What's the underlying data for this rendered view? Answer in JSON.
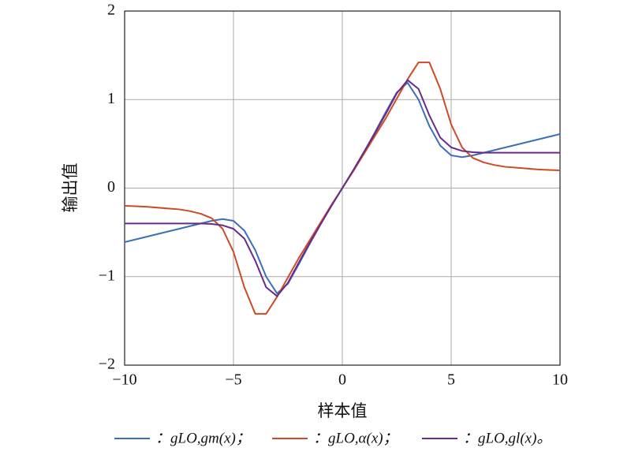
{
  "chart_data": {
    "type": "line",
    "xlabel": "样本值",
    "ylabel": "输出值",
    "xlim": [
      -10,
      10
    ],
    "ylim": [
      -2,
      2
    ],
    "xticks": [
      {
        "value": -10,
        "label": "−10"
      },
      {
        "value": -5,
        "label": "−5"
      },
      0,
      5,
      10
    ],
    "yticks": [
      {
        "value": -2,
        "label": "−2"
      },
      {
        "value": -1,
        "label": "−1"
      },
      0,
      1,
      2
    ],
    "grid": true,
    "x": [
      -10,
      -9.5,
      -9,
      -8.5,
      -8,
      -7.5,
      -7,
      -6.5,
      -6,
      -5.5,
      -5,
      -4.5,
      -4,
      -3.5,
      -3,
      -2.5,
      -2,
      -1.5,
      -1,
      -0.5,
      0,
      0.5,
      1,
      1.5,
      2,
      2.5,
      3,
      3.5,
      4,
      4.5,
      5,
      5.5,
      6,
      6.5,
      7,
      7.5,
      8,
      8.5,
      9,
      9.5,
      10
    ],
    "series": [
      {
        "name": "：gLO,gm(x)；",
        "color": "#3b6fb6",
        "values": [
          -0.61,
          -0.58,
          -0.55,
          -0.52,
          -0.49,
          -0.46,
          -0.43,
          -0.4,
          -0.37,
          -0.35,
          -0.37,
          -0.48,
          -0.7,
          -1.0,
          -1.19,
          -1.08,
          -0.86,
          -0.63,
          -0.41,
          -0.2,
          0,
          0.2,
          0.41,
          0.63,
          0.86,
          1.08,
          1.19,
          1.0,
          0.7,
          0.48,
          0.37,
          0.35,
          0.37,
          0.4,
          0.43,
          0.46,
          0.49,
          0.52,
          0.55,
          0.58,
          0.61
        ]
      },
      {
        "name": "：gLO,α(x)；",
        "color": "#cc4a25",
        "values": [
          -0.2,
          -0.205,
          -0.21,
          -0.22,
          -0.23,
          -0.24,
          -0.26,
          -0.29,
          -0.34,
          -0.46,
          -0.72,
          -1.12,
          -1.42,
          -1.42,
          -1.23,
          -1.01,
          -0.79,
          -0.59,
          -0.39,
          -0.19,
          0,
          0.19,
          0.39,
          0.59,
          0.79,
          1.01,
          1.23,
          1.42,
          1.42,
          1.12,
          0.72,
          0.46,
          0.34,
          0.29,
          0.26,
          0.24,
          0.23,
          0.22,
          0.21,
          0.205,
          0.2
        ]
      },
      {
        "name": "：gLO,gl(x)。",
        "color": "#6a2a8c",
        "values": [
          -0.4,
          -0.4,
          -0.4,
          -0.4,
          -0.4,
          -0.4,
          -0.4,
          -0.4,
          -0.405,
          -0.42,
          -0.46,
          -0.57,
          -0.82,
          -1.12,
          -1.22,
          -1.07,
          -0.84,
          -0.62,
          -0.41,
          -0.2,
          0,
          0.2,
          0.41,
          0.62,
          0.84,
          1.07,
          1.22,
          1.12,
          0.82,
          0.57,
          0.46,
          0.42,
          0.405,
          0.4,
          0.4,
          0.4,
          0.4,
          0.4,
          0.4,
          0.4,
          0.4
        ]
      }
    ]
  }
}
